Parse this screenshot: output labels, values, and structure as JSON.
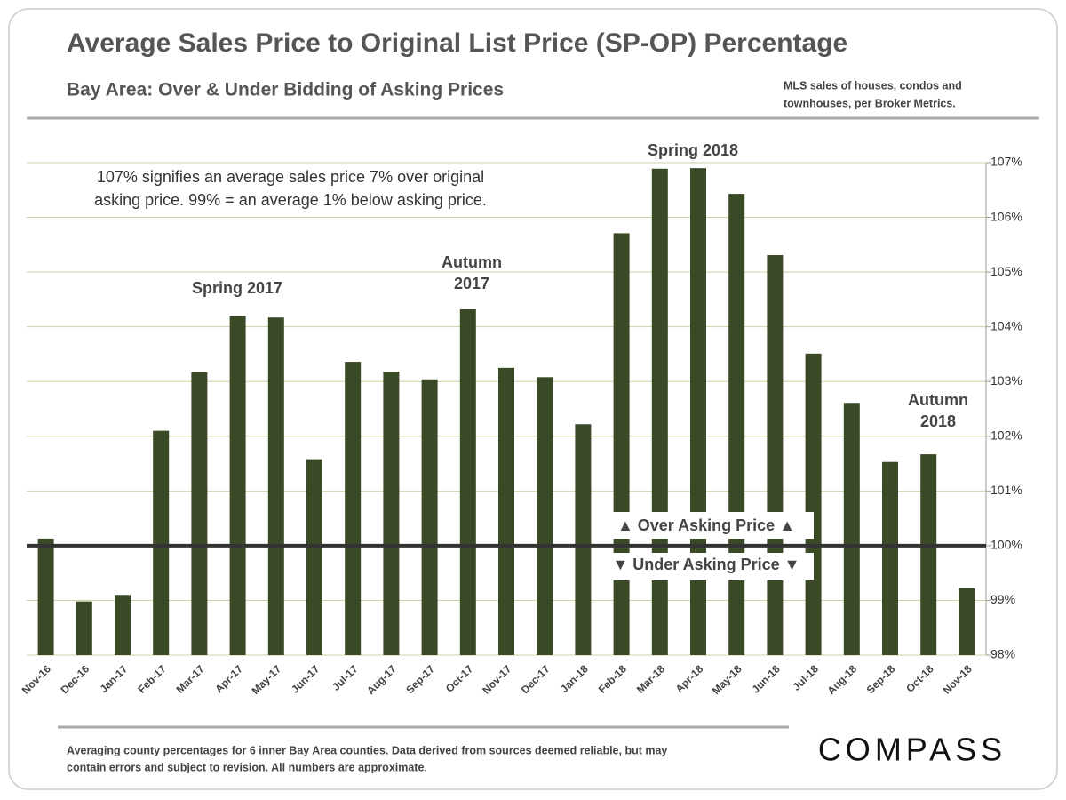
{
  "chart_data": {
    "type": "bar",
    "title": "Average Sales Price to Original List Price (SP-OP) Percentage",
    "subtitle": "Bay Area: Over & Under Bidding  of Asking Prices",
    "source": [
      "MLS sales of houses, condos and",
      "townhouses, per Broker Metrics."
    ],
    "note": [
      "107% signifies an average sales price 7% over original",
      "asking price. 99% = an average 1% below asking price."
    ],
    "annotations": [
      [
        "Spring 2017"
      ],
      [
        "Autumn",
        "2017"
      ],
      [
        "Spring 2018"
      ],
      [
        "Autumn",
        "2018"
      ]
    ],
    "over_label": "▲ Over Asking Price ▲",
    "under_label": "▼ Under Asking Price ▼",
    "footnote": [
      "Averaging county percentages for 6 inner Bay Area counties. Data derived from sources deemed reliable, but may",
      "contain errors and subject to revision. All numbers are approximate."
    ],
    "brand": "COMPASS",
    "categories": [
      "Nov-16",
      "Dec-16",
      "Jan-17",
      "Feb-17",
      "Mar-17",
      "Apr-17",
      "May-17",
      "Jun-17",
      "Jul-17",
      "Aug-17",
      "Sep-17",
      "Oct-17",
      "Nov-17",
      "Dec-17",
      "Jan-18",
      "Feb-18",
      "Mar-18",
      "Apr-18",
      "May-18",
      "Jun-18",
      "Jul-18",
      "Aug-18",
      "Sep-18",
      "Oct-18",
      "Nov-18"
    ],
    "values": [
      100.13,
      98.98,
      99.1,
      102.1,
      103.17,
      104.2,
      104.17,
      101.58,
      103.36,
      103.18,
      103.04,
      104.32,
      103.25,
      103.08,
      102.22,
      105.71,
      106.89,
      106.9,
      106.43,
      105.31,
      103.51,
      102.61,
      101.53,
      101.67,
      99.22
    ],
    "color": "#3b4a26",
    "ylim": [
      98,
      107
    ],
    "yticks": [
      {
        "value": 98,
        "label": "98%"
      },
      {
        "value": 99,
        "label": "99%"
      },
      {
        "value": 100,
        "label": "100%"
      },
      {
        "value": 101,
        "label": "101%"
      },
      {
        "value": 102,
        "label": "102%"
      },
      {
        "value": 103,
        "label": "103%"
      },
      {
        "value": 104,
        "label": "104%"
      },
      {
        "value": 105,
        "label": "105%"
      },
      {
        "value": 106,
        "label": "106%"
      },
      {
        "value": 107,
        "label": "107%"
      }
    ],
    "baseline": 100,
    "grid": true
  }
}
